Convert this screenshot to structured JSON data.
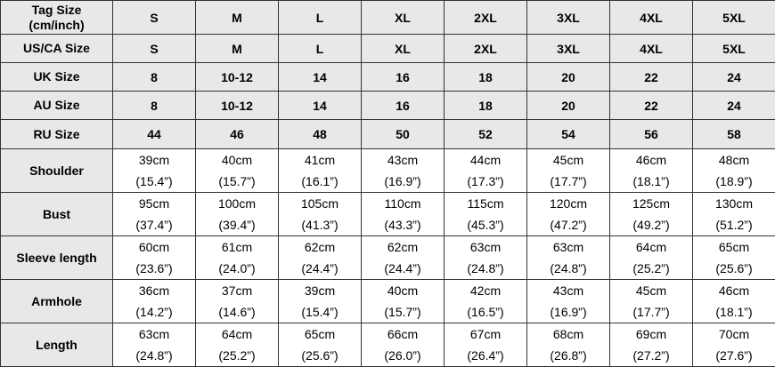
{
  "table": {
    "rows": [
      {
        "label": "Tag Size\n(cm/inch)",
        "cells": [
          "S",
          "M",
          "L",
          "XL",
          "2XL",
          "3XL",
          "4XL",
          "5XL"
        ]
      },
      {
        "label": "US/CA Size",
        "cells": [
          "S",
          "M",
          "L",
          "XL",
          "2XL",
          "3XL",
          "4XL",
          "5XL"
        ]
      },
      {
        "label": "UK Size",
        "cells": [
          "8",
          "10-12",
          "14",
          "16",
          "18",
          "20",
          "22",
          "24"
        ]
      },
      {
        "label": "AU Size",
        "cells": [
          "8",
          "10-12",
          "14",
          "16",
          "18",
          "20",
          "22",
          "24"
        ]
      },
      {
        "label": "RU Size",
        "cells": [
          "44",
          "46",
          "48",
          "50",
          "52",
          "54",
          "56",
          "58"
        ]
      },
      {
        "label": "Shoulder",
        "cells": [
          [
            "39cm",
            "(15.4”)"
          ],
          [
            "40cm",
            "(15.7”)"
          ],
          [
            "41cm",
            "(16.1”)"
          ],
          [
            "43cm",
            "(16.9”)"
          ],
          [
            "44cm",
            "(17.3”)"
          ],
          [
            "45cm",
            "(17.7”)"
          ],
          [
            "46cm",
            "(18.1”)"
          ],
          [
            "48cm",
            "(18.9”)"
          ]
        ]
      },
      {
        "label": "Bust",
        "cells": [
          [
            "95cm",
            "(37.4”)"
          ],
          [
            "100cm",
            "(39.4”)"
          ],
          [
            "105cm",
            "(41.3”)"
          ],
          [
            "110cm",
            "(43.3”)"
          ],
          [
            "115cm",
            "(45.3”)"
          ],
          [
            "120cm",
            "(47.2”)"
          ],
          [
            "125cm",
            "(49.2”)"
          ],
          [
            "130cm",
            "(51.2”)"
          ]
        ]
      },
      {
        "label": "Sleeve length",
        "cells": [
          [
            "60cm",
            "(23.6”)"
          ],
          [
            "61cm",
            "(24.0”)"
          ],
          [
            "62cm",
            "(24.4”)"
          ],
          [
            "62cm",
            "(24.4”)"
          ],
          [
            "63cm",
            "(24.8”)"
          ],
          [
            "63cm",
            "(24.8”)"
          ],
          [
            "64cm",
            "(25.2”)"
          ],
          [
            "65cm",
            "(25.6”)"
          ]
        ]
      },
      {
        "label": "Armhole",
        "cells": [
          [
            "36cm",
            "(14.2”)"
          ],
          [
            "37cm",
            "(14.6”)"
          ],
          [
            "39cm",
            "(15.4”)"
          ],
          [
            "40cm",
            "(15.7”)"
          ],
          [
            "42cm",
            "(16.5”)"
          ],
          [
            "43cm",
            "(16.9”)"
          ],
          [
            "45cm",
            "(17.7”)"
          ],
          [
            "46cm",
            "(18.1”)"
          ]
        ]
      },
      {
        "label": "Length",
        "cells": [
          [
            "63cm",
            "(24.8”)"
          ],
          [
            "64cm",
            "(25.2”)"
          ],
          [
            "65cm",
            "(25.6”)"
          ],
          [
            "66cm",
            "(26.0”)"
          ],
          [
            "67cm",
            "(26.4”)"
          ],
          [
            "68cm",
            "(26.8”)"
          ],
          [
            "69cm",
            "(27.2”)"
          ],
          [
            "70cm",
            "(27.6”)"
          ]
        ]
      }
    ]
  }
}
